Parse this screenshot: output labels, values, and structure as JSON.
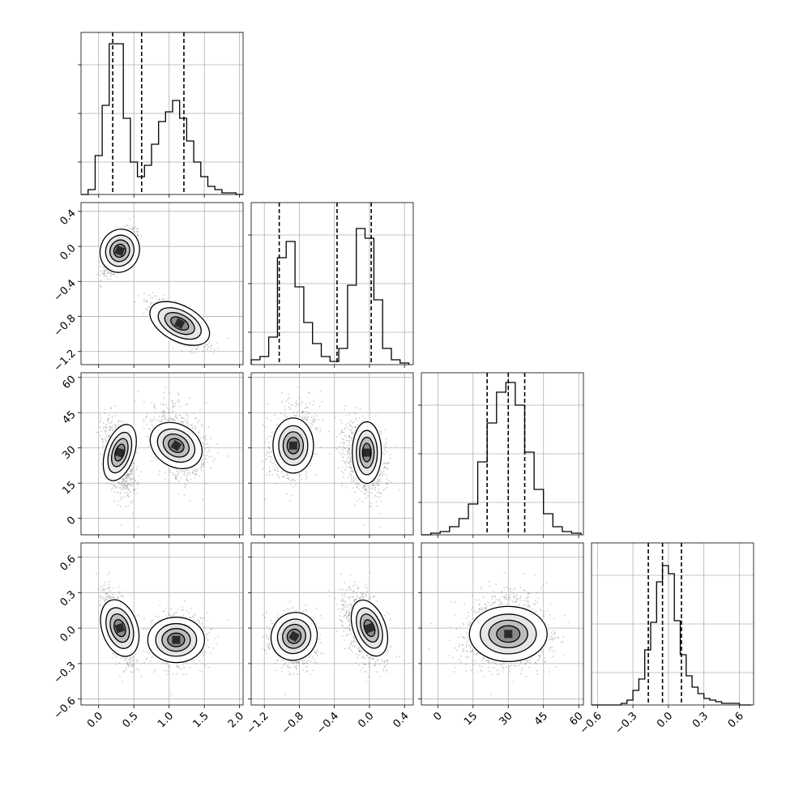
{
  "chart_data": {
    "type": "corner",
    "grid": true,
    "parameters": [
      {
        "range": [
          -0.25,
          2.05
        ],
        "ticks": [
          0.0,
          0.5,
          1.0,
          1.5,
          2.0
        ],
        "tick_labels": [
          "0.0",
          "0.5",
          "1.0",
          "1.5",
          "2.0"
        ]
      },
      {
        "range": [
          -1.35,
          0.5
        ],
        "ticks": [
          -1.2,
          -0.8,
          -0.4,
          0.0,
          0.4
        ],
        "tick_labels": [
          "−1.2",
          "−0.8",
          "−0.4",
          "0.0",
          "0.4"
        ]
      },
      {
        "range": [
          -7,
          62
        ],
        "ticks": [
          0,
          15,
          30,
          45,
          60
        ],
        "tick_labels": [
          "0",
          "15",
          "30",
          "45",
          "60"
        ]
      },
      {
        "range": [
          -0.65,
          0.72
        ],
        "ticks": [
          -0.6,
          -0.3,
          0.0,
          0.3,
          0.6
        ],
        "tick_labels": [
          "−0.6",
          "−0.3",
          "0.0",
          "0.3",
          "0.6"
        ]
      }
    ],
    "histograms": [
      {
        "bin_edges": [
          -0.25,
          -0.15,
          -0.05,
          0.05,
          0.15,
          0.25,
          0.35,
          0.45,
          0.55,
          0.65,
          0.75,
          0.85,
          0.95,
          1.05,
          1.15,
          1.25,
          1.35,
          1.45,
          1.55,
          1.65,
          1.75,
          1.85,
          1.95,
          2.05
        ],
        "counts": [
          0,
          0.03,
          0.24,
          0.55,
          0.93,
          0.93,
          0.47,
          0.2,
          0.11,
          0.18,
          0.31,
          0.45,
          0.51,
          0.58,
          0.47,
          0.33,
          0.2,
          0.11,
          0.05,
          0.03,
          0.01,
          0.01,
          0
        ],
        "quantiles": [
          0.2,
          0.61,
          1.21
        ],
        "ylim": [
          0,
          1.0
        ]
      },
      {
        "bin_edges": [
          -1.35,
          -1.25,
          -1.15,
          -1.05,
          -0.95,
          -0.85,
          -0.75,
          -0.65,
          -0.55,
          -0.45,
          -0.35,
          -0.25,
          -0.15,
          -0.05,
          0.05,
          0.15,
          0.25,
          0.35,
          0.45
        ],
        "counts": [
          0.03,
          0.05,
          0.17,
          0.66,
          0.76,
          0.48,
          0.26,
          0.13,
          0.05,
          0.02,
          0.1,
          0.49,
          0.84,
          0.78,
          0.4,
          0.1,
          0.03,
          0.01
        ],
        "quantiles": [
          -1.03,
          -0.37,
          0.02
        ],
        "ylim": [
          0,
          1.0
        ]
      },
      {
        "bin_edges": [
          -7,
          -3,
          1,
          5,
          9,
          13,
          17,
          21,
          25,
          29,
          33,
          37,
          41,
          45,
          49,
          53,
          57,
          61
        ],
        "counts": [
          0,
          0.01,
          0.02,
          0.05,
          0.1,
          0.19,
          0.45,
          0.69,
          0.88,
          0.94,
          0.8,
          0.51,
          0.28,
          0.13,
          0.05,
          0.02,
          0.01
        ],
        "quantiles": [
          21,
          30,
          37
        ],
        "ylim": [
          0,
          1.0
        ]
      },
      {
        "bin_edges": [
          -0.65,
          -0.6,
          -0.55,
          -0.5,
          -0.45,
          -0.4,
          -0.35,
          -0.3,
          -0.25,
          -0.2,
          -0.15,
          -0.1,
          -0.05,
          0.0,
          0.05,
          0.1,
          0.15,
          0.2,
          0.25,
          0.3,
          0.35,
          0.4,
          0.45,
          0.5,
          0.55,
          0.6,
          0.65,
          0.7
        ],
        "counts": [
          0,
          0,
          0,
          0,
          0,
          0.01,
          0.03,
          0.09,
          0.16,
          0.34,
          0.51,
          0.76,
          0.86,
          0.81,
          0.52,
          0.31,
          0.18,
          0.11,
          0.07,
          0.04,
          0.03,
          0.02,
          0.01,
          0.01,
          0.01,
          0,
          0
        ],
        "quantiles": [
          -0.17,
          -0.05,
          0.11
        ],
        "ylim": [
          0,
          1.0
        ]
      }
    ],
    "density_modes": [
      {
        "x": 0.3,
        "y": -0.05,
        "z": 26,
        "w": 0.0
      },
      {
        "x": 1.15,
        "y": -0.88,
        "z": 32,
        "w": -0.1
      }
    ]
  }
}
